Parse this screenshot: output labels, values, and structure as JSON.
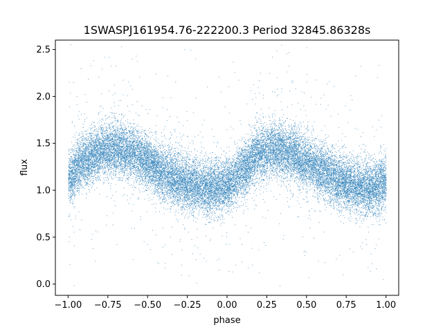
{
  "chart_data": {
    "type": "scatter",
    "title": "1SWASPJ161954.76-222200.3 Period 32845.86328s",
    "xlabel": "phase",
    "ylabel": "flux",
    "xlim": [
      -1.08,
      1.08
    ],
    "ylim": [
      -0.12,
      2.6
    ],
    "xticks": [
      -1.0,
      -0.75,
      -0.5,
      -0.25,
      0.0,
      0.25,
      0.5,
      0.75,
      1.0
    ],
    "xtick_labels": [
      "−1.00",
      "−0.75",
      "−0.50",
      "−0.25",
      "0.00",
      "0.25",
      "0.50",
      "0.75",
      "1.00"
    ],
    "yticks": [
      0.0,
      0.5,
      1.0,
      1.5,
      2.0,
      2.5
    ],
    "ytick_labels": [
      "0.0",
      "0.5",
      "1.0",
      "1.5",
      "2.0",
      "2.5"
    ],
    "grid": false,
    "point_color": "#1f77b4",
    "x_range": [
      -1.0,
      1.0
    ],
    "point_count": 24000,
    "model": {
      "description": "phase-folded light curve, two repeated cycles",
      "curve_x": [
        -1.0,
        -0.9,
        -0.8,
        -0.7,
        -0.6,
        -0.5,
        -0.4,
        -0.3,
        -0.2,
        -0.1,
        0.0,
        0.1,
        0.2,
        0.3,
        0.4,
        0.5,
        0.6,
        0.7,
        0.8,
        0.9,
        1.0
      ],
      "curve_y": [
        1.15,
        1.32,
        1.42,
        1.45,
        1.4,
        1.3,
        1.18,
        1.1,
        1.05,
        1.02,
        1.05,
        1.22,
        1.4,
        1.45,
        1.4,
        1.3,
        1.2,
        1.1,
        1.05,
        1.02,
        1.08
      ],
      "scatter_sigma": 0.14
    }
  }
}
